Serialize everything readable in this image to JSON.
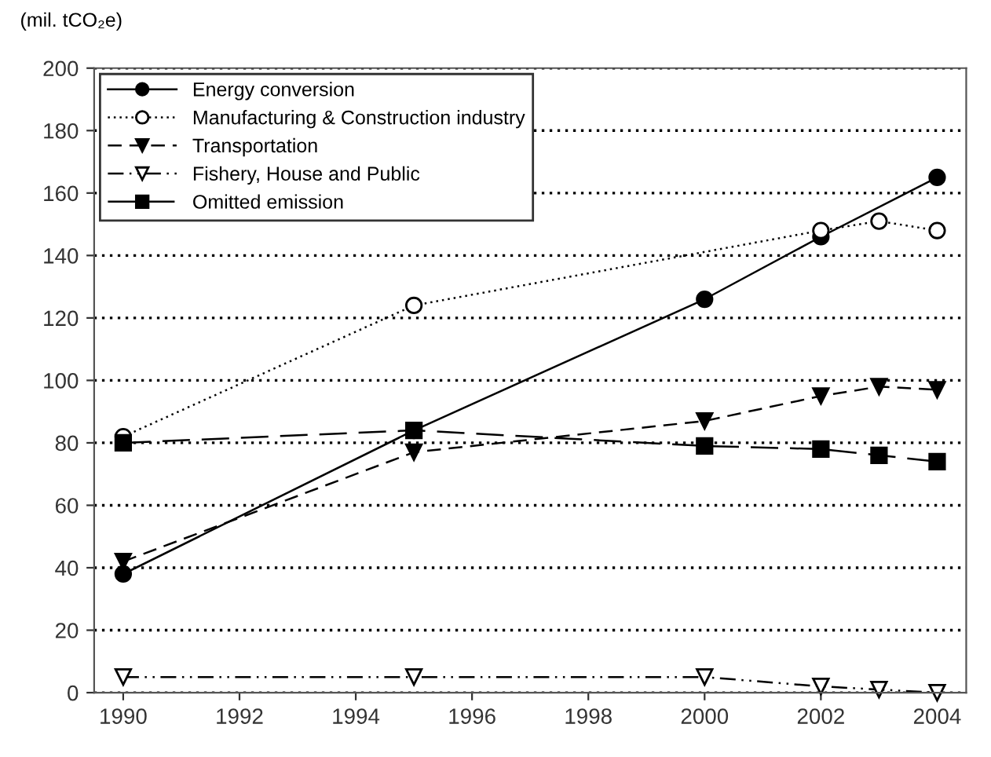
{
  "chart_data": {
    "type": "line",
    "ylabel": "(mil. tCO₂e)",
    "xlim": [
      1989.5,
      2004.5
    ],
    "xticks": [
      1990,
      1992,
      1994,
      1996,
      1998,
      2000,
      2002,
      2004
    ],
    "ylim": [
      0,
      200
    ],
    "yticks": [
      0,
      20,
      40,
      60,
      80,
      100,
      120,
      140,
      160,
      180,
      200
    ],
    "grid": "y",
    "legend": "top left",
    "series": [
      {
        "name": "Energy conversion",
        "color": "#000000",
        "marker": "circle",
        "line_style": "solid",
        "x": [
          1990,
          1995,
          2000,
          2002,
          2004
        ],
        "values": [
          38,
          84,
          126,
          146,
          165
        ]
      },
      {
        "name": "Manufacturing & Construction industry",
        "color": "#000000",
        "marker": "circle-open",
        "line_style": "dotted",
        "x": [
          1990,
          1995,
          2002,
          2003,
          2004
        ],
        "values": [
          82,
          124,
          148,
          151,
          148
        ]
      },
      {
        "name": "Transportation",
        "color": "#000000",
        "marker": "triangle",
        "line_style": "dashed",
        "x": [
          1990,
          1995,
          2000,
          2002,
          2003,
          2004
        ],
        "values": [
          42,
          77,
          87,
          95,
          98,
          97
        ]
      },
      {
        "name": "Fishery, House and Public",
        "color": "#000000",
        "marker": "triangle-open",
        "line_style": "dashdot",
        "x": [
          1990,
          1995,
          2000,
          2002,
          2003,
          2004
        ],
        "values": [
          5,
          5,
          5,
          2,
          1,
          0
        ]
      },
      {
        "name": "Omitted emission",
        "color": "#000000",
        "marker": "square",
        "line_style": "longdash",
        "x": [
          1990,
          1995,
          2000,
          2002,
          2003,
          2004
        ],
        "values": [
          80,
          84,
          79,
          78,
          76,
          74
        ]
      }
    ]
  }
}
